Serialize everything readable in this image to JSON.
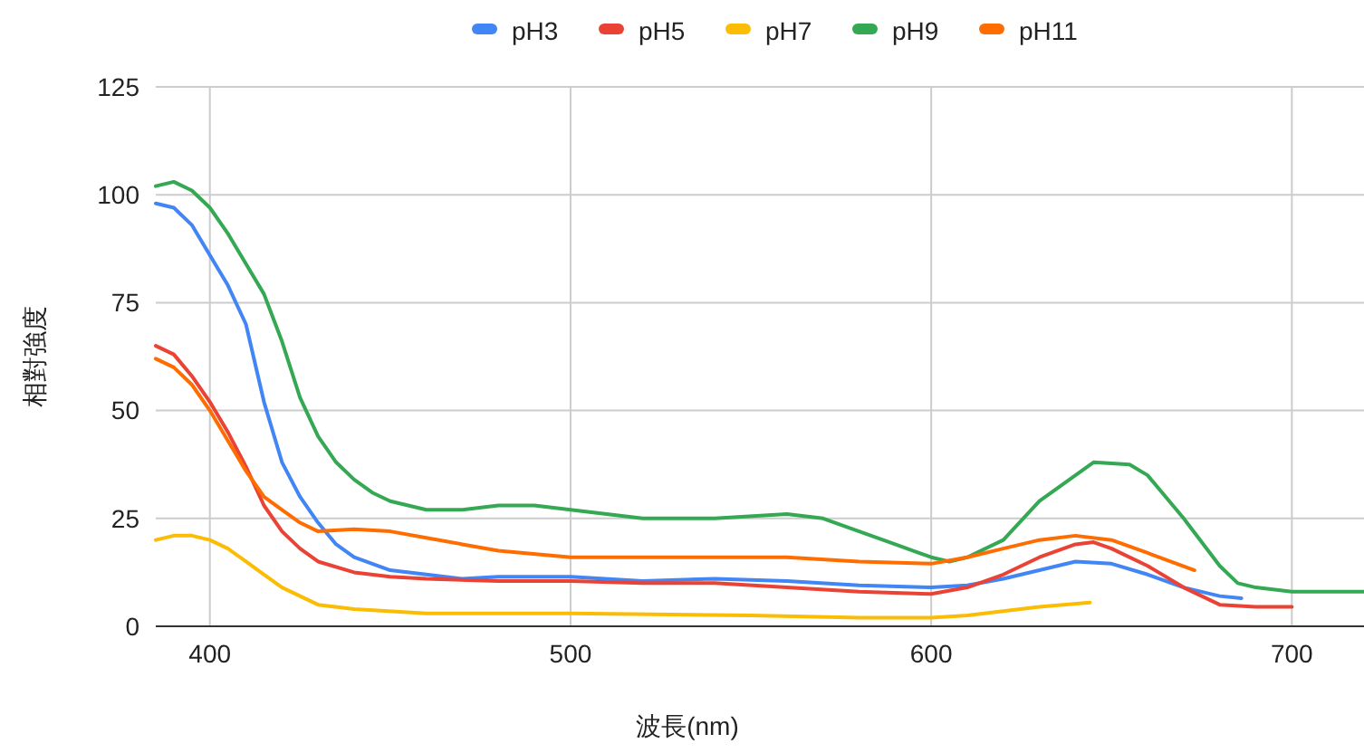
{
  "chart_data": {
    "type": "line",
    "xlabel": "波長(nm)",
    "ylabel": "相對強度",
    "xlim": [
      385,
      720
    ],
    "xticks": [
      400,
      500,
      600,
      700
    ],
    "ylim": [
      0,
      125
    ],
    "yticks": [
      0,
      25,
      50,
      75,
      100,
      125
    ],
    "grid": true,
    "legend": "top",
    "marker": "none",
    "line_style": "solid",
    "series": [
      {
        "name": "pH3",
        "color": "#4285f4",
        "x": [
          385,
          390,
          395,
          400,
          405,
          410,
          415,
          420,
          425,
          430,
          435,
          440,
          450,
          460,
          470,
          480,
          500,
          520,
          540,
          560,
          580,
          600,
          610,
          620,
          630,
          640,
          650,
          660,
          670,
          680,
          686
        ],
        "values": [
          98,
          97,
          93,
          86,
          79,
          70,
          52,
          38,
          30,
          24,
          19,
          16,
          13,
          12,
          11,
          11.5,
          11.5,
          10.5,
          11,
          10.5,
          9.5,
          9,
          9.5,
          11,
          13,
          15,
          14.5,
          12,
          9,
          7,
          6.5
        ]
      },
      {
        "name": "pH5",
        "color": "#ea4335",
        "x": [
          385,
          390,
          395,
          400,
          405,
          410,
          415,
          420,
          425,
          430,
          440,
          450,
          460,
          480,
          500,
          520,
          540,
          560,
          580,
          600,
          610,
          620,
          630,
          640,
          645,
          650,
          660,
          670,
          680,
          690,
          700
        ],
        "values": [
          65,
          63,
          58,
          52,
          45,
          37,
          28,
          22,
          18,
          15,
          12.5,
          11.5,
          11,
          10.5,
          10.5,
          10,
          10,
          9,
          8,
          7.5,
          9,
          12,
          16,
          19,
          19.5,
          18,
          14,
          9,
          5,
          4.5,
          4.5
        ]
      },
      {
        "name": "pH7",
        "color": "#fbbc04",
        "x": [
          385,
          390,
          395,
          400,
          405,
          410,
          415,
          420,
          425,
          430,
          440,
          460,
          500,
          550,
          580,
          600,
          610,
          620,
          630,
          644
        ],
        "values": [
          20,
          21,
          21,
          20,
          18,
          15,
          12,
          9,
          7,
          5,
          4,
          3,
          3,
          2.5,
          2,
          2,
          2.5,
          3.5,
          4.5,
          5.5
        ]
      },
      {
        "name": "pH9",
        "color": "#34a853",
        "x": [
          385,
          390,
          395,
          400,
          405,
          410,
          415,
          420,
          425,
          430,
          435,
          440,
          445,
          450,
          460,
          470,
          480,
          490,
          500,
          520,
          540,
          560,
          570,
          580,
          590,
          600,
          605,
          610,
          620,
          630,
          640,
          645,
          655,
          660,
          670,
          680,
          685,
          690,
          700,
          720
        ],
        "values": [
          102,
          103,
          101,
          97,
          91,
          84,
          77,
          66,
          53,
          44,
          38,
          34,
          31,
          29,
          27,
          27,
          28,
          28,
          27,
          25,
          25,
          26,
          25,
          22,
          19,
          16,
          15,
          16,
          20,
          29,
          35,
          38,
          37.5,
          35,
          25,
          14,
          10,
          9,
          8,
          8
        ]
      },
      {
        "name": "pH11",
        "color": "#ff6d01",
        "x": [
          385,
          390,
          395,
          400,
          405,
          410,
          415,
          420,
          425,
          430,
          440,
          450,
          460,
          470,
          480,
          500,
          520,
          540,
          560,
          580,
          600,
          610,
          620,
          630,
          640,
          650,
          660,
          673
        ],
        "values": [
          62,
          60,
          56,
          50,
          43,
          36,
          30,
          27,
          24,
          22,
          22.5,
          22,
          20.5,
          19,
          17.5,
          16,
          16,
          16,
          16,
          15,
          14.5,
          16,
          18,
          20,
          21,
          20,
          17,
          13
        ]
      }
    ]
  }
}
